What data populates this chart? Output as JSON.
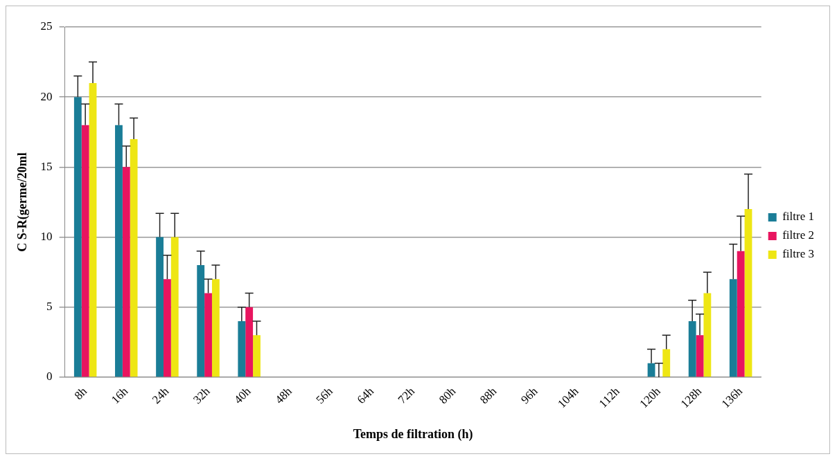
{
  "chart_data": {
    "type": "bar",
    "xlabel": "Temps de filtration (h)",
    "ylabel": "C S-R(germe/20ml",
    "categories": [
      "8h",
      "16h",
      "24h",
      "32h",
      "40h",
      "48h",
      "56h",
      "64h",
      "72h",
      "80h",
      "88h",
      "96h",
      "104h",
      "112h",
      "120h",
      "128h",
      "136h"
    ],
    "series": [
      {
        "name": "filtre 1",
        "color": "#1a7d97",
        "values": [
          20,
          18,
          10,
          8,
          4,
          0,
          0,
          0,
          0,
          0,
          0,
          0,
          0,
          0,
          1,
          4,
          7
        ],
        "errors": [
          1.5,
          1.5,
          1.7,
          1,
          1,
          null,
          null,
          null,
          null,
          null,
          null,
          null,
          null,
          null,
          1,
          1.5,
          2.5
        ]
      },
      {
        "name": "filtre 2",
        "color": "#e8155f",
        "values": [
          18,
          15,
          7,
          6,
          5,
          0,
          0,
          0,
          0,
          0,
          0,
          0,
          0,
          0,
          0,
          3,
          9
        ],
        "errors": [
          1.5,
          1.5,
          1.7,
          1,
          1,
          null,
          null,
          null,
          null,
          null,
          null,
          null,
          null,
          null,
          1,
          1.5,
          2.5
        ]
      },
      {
        "name": "filtre 3",
        "color": "#eee614",
        "values": [
          21,
          17,
          10,
          7,
          3,
          0,
          0,
          0,
          0,
          0,
          0,
          0,
          0,
          0,
          2,
          6,
          12
        ],
        "errors": [
          1.5,
          1.5,
          1.7,
          1,
          1,
          null,
          null,
          null,
          null,
          null,
          null,
          null,
          null,
          null,
          1,
          1.5,
          2.5
        ]
      }
    ],
    "ylim": [
      0,
      25
    ],
    "yticks": [
      0,
      5,
      10,
      15,
      20,
      25
    ],
    "grid": "y",
    "legend": "right"
  }
}
